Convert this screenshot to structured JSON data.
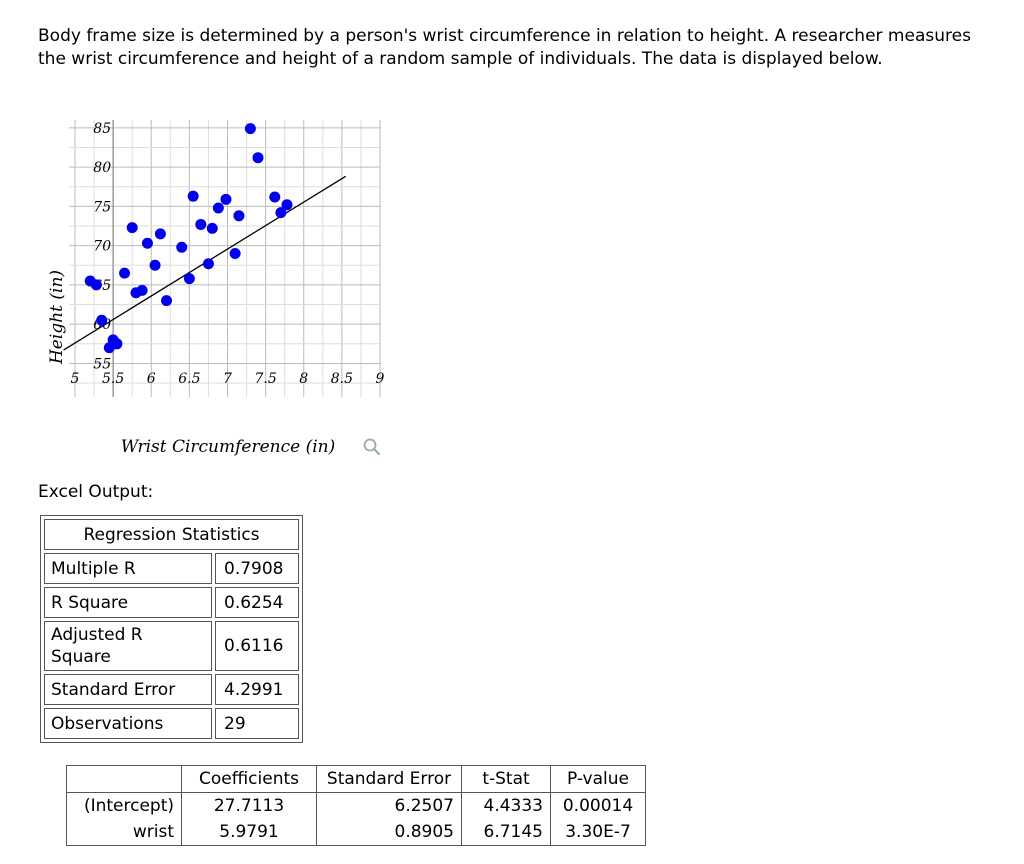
{
  "intro": "Body frame size is determined by a person's wrist circumference in relation to height. A researcher measures the wrist circumference and height of a random sample of individuals. The data is displayed below.",
  "excel_label": "Excel Output:",
  "zoom_icon": "magnifier-icon",
  "regression_stats": {
    "header": "Regression Statistics",
    "rows": [
      {
        "label": "Multiple R",
        "value": "0.7908"
      },
      {
        "label": "R Square",
        "value": "0.6254"
      },
      {
        "label": "Adjusted R Square",
        "value": "0.6116"
      },
      {
        "label": "Standard Error",
        "value": "4.2991"
      },
      {
        "label": "Observations",
        "value": "29"
      }
    ]
  },
  "coefficients": {
    "headers": [
      "",
      "Coefficients",
      "Standard Error",
      "t-Stat",
      "P-value"
    ],
    "rows": [
      [
        "(Intercept)",
        "27.7113",
        "6.2507",
        "4.4333",
        "0.00014"
      ],
      [
        "wrist",
        "5.9791",
        "0.8905",
        "6.7145",
        "3.30E-7"
      ]
    ]
  },
  "chart_data": {
    "type": "scatter",
    "xlabel": "Wrist Circumference (in)",
    "ylabel": "Height (in)",
    "xlim": [
      5,
      9
    ],
    "ylim": [
      52,
      86
    ],
    "x_ticks": [
      "5",
      "5.5",
      "6",
      "6.5",
      "7",
      "7.5",
      "8",
      "8.5",
      "9"
    ],
    "y_ticks": [
      "55",
      "60",
      "65",
      "70",
      "75",
      "80",
      "85"
    ],
    "grid": true,
    "point_color": "#0000ee",
    "points": [
      {
        "x": 5.2,
        "y": 65.5
      },
      {
        "x": 5.28,
        "y": 65.0
      },
      {
        "x": 5.35,
        "y": 60.5
      },
      {
        "x": 5.45,
        "y": 57.0
      },
      {
        "x": 5.5,
        "y": 58.0
      },
      {
        "x": 5.55,
        "y": 57.5
      },
      {
        "x": 5.65,
        "y": 66.5
      },
      {
        "x": 5.75,
        "y": 72.3
      },
      {
        "x": 5.8,
        "y": 64.0
      },
      {
        "x": 5.88,
        "y": 64.3
      },
      {
        "x": 5.95,
        "y": 70.3
      },
      {
        "x": 6.05,
        "y": 67.5
      },
      {
        "x": 6.12,
        "y": 71.5
      },
      {
        "x": 6.2,
        "y": 63.0
      },
      {
        "x": 6.4,
        "y": 69.8
      },
      {
        "x": 6.5,
        "y": 65.8
      },
      {
        "x": 6.55,
        "y": 76.3
      },
      {
        "x": 6.65,
        "y": 72.7
      },
      {
        "x": 6.75,
        "y": 67.7
      },
      {
        "x": 6.8,
        "y": 72.2
      },
      {
        "x": 6.88,
        "y": 74.8
      },
      {
        "x": 6.98,
        "y": 75.9
      },
      {
        "x": 7.1,
        "y": 69.0
      },
      {
        "x": 7.15,
        "y": 73.8
      },
      {
        "x": 7.3,
        "y": 84.9
      },
      {
        "x": 7.4,
        "y": 81.2
      },
      {
        "x": 7.62,
        "y": 76.2
      },
      {
        "x": 7.7,
        "y": 74.2
      },
      {
        "x": 7.78,
        "y": 75.2
      }
    ],
    "trendline": {
      "intercept": 27.7113,
      "slope": 5.9791,
      "x_range": [
        4.85,
        8.55
      ]
    }
  }
}
